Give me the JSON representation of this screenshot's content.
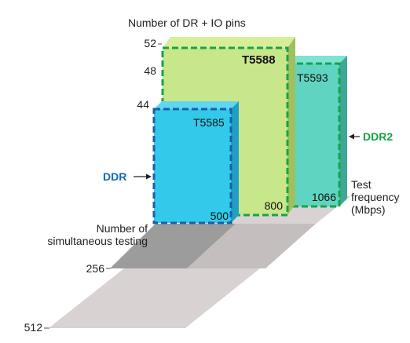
{
  "axes": {
    "vertical_title": "Number of DR + IO pins",
    "vertical_ticks": [
      "52",
      "48",
      "44"
    ],
    "depth_title_line1": "Number of",
    "depth_title_line2": "simultaneous testing",
    "depth_ticks": [
      "256",
      "512"
    ],
    "frequency_title_line1": "Test",
    "frequency_title_line2": "frequency",
    "frequency_title_line3": "(Mbps)"
  },
  "testers": [
    {
      "name": "T5588",
      "frequency_label": "800",
      "color": "#c8e68a"
    },
    {
      "name": "T5593",
      "frequency_label": "1066",
      "color": "#5fd4c0"
    },
    {
      "name": "T5585",
      "frequency_label": "500",
      "color": "#33c9ea"
    }
  ],
  "callouts": {
    "ddr": {
      "label": "DDR",
      "color": "#1468b5"
    },
    "ddr2": {
      "label": "DDR2",
      "color": "#16a046"
    }
  },
  "colors": {
    "t5588_outline": "#17a34a",
    "t5593_outline": "#17a34a",
    "t5585_outline": "#1b5fa8",
    "floor_dark": "#9c9c9c",
    "floor_light": "#d8d3d2"
  }
}
